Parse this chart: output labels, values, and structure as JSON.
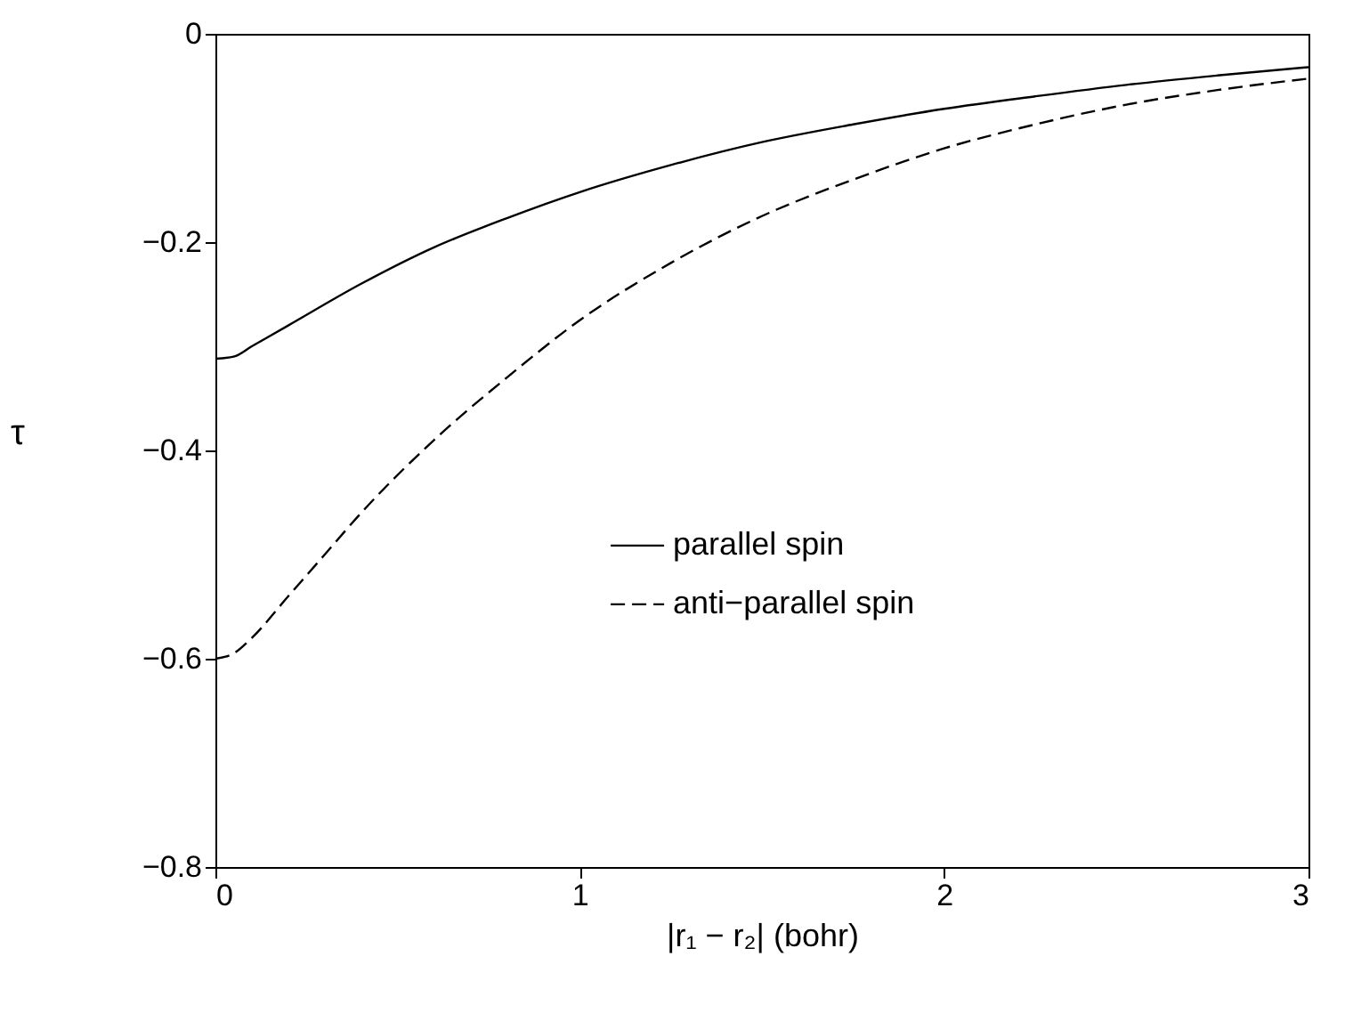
{
  "chart_data": {
    "type": "line",
    "xlabel": "|r₁ − r₂| (bohr)",
    "ylabel": "τ",
    "xlim": [
      0,
      3
    ],
    "ylim": [
      -0.8,
      0
    ],
    "xticks": [
      0,
      1,
      2,
      3
    ],
    "yticks": [
      -0.8,
      -0.6,
      -0.4,
      -0.2,
      0
    ],
    "grid": false,
    "legend": "right",
    "marker": "none",
    "series": [
      {
        "name": "parallel spin",
        "color": "#000000",
        "line_style": "solid",
        "x": [
          0,
          0.05,
          0.1,
          0.2,
          0.4,
          0.6,
          0.8,
          1.0,
          1.25,
          1.5,
          1.75,
          2.0,
          2.25,
          2.5,
          2.75,
          3.0
        ],
        "values": [
          -0.312,
          -0.31,
          -0.3,
          -0.28,
          -0.24,
          -0.205,
          -0.177,
          -0.152,
          -0.126,
          -0.104,
          -0.087,
          -0.072,
          -0.06,
          -0.049,
          -0.04,
          -0.032
        ]
      },
      {
        "name": "anti−parallel spin",
        "color": "#000000",
        "line_style": "dashed",
        "x": [
          0,
          0.05,
          0.1,
          0.2,
          0.3,
          0.4,
          0.6,
          0.8,
          1.0,
          1.25,
          1.5,
          1.75,
          2.0,
          2.25,
          2.5,
          2.75,
          3.0
        ],
        "values": [
          -0.6,
          -0.595,
          -0.58,
          -0.54,
          -0.5,
          -0.46,
          -0.39,
          -0.33,
          -0.275,
          -0.22,
          -0.175,
          -0.14,
          -0.11,
          -0.087,
          -0.068,
          -0.054,
          -0.043
        ]
      }
    ]
  }
}
